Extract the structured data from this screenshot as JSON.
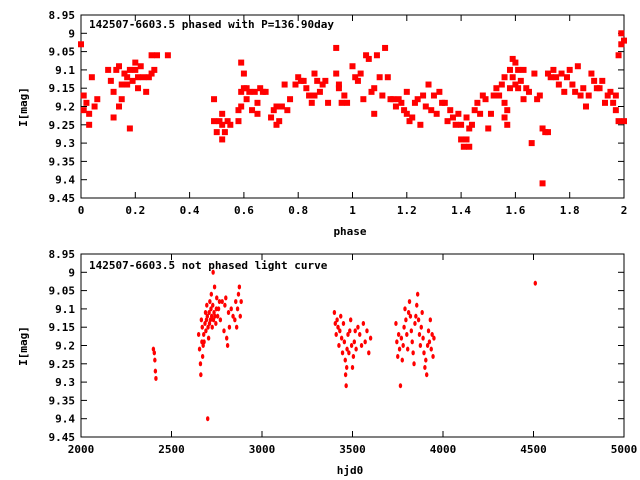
{
  "chart_data": [
    {
      "type": "scatter",
      "title": "142507-6603.5 phased with P=136.90day",
      "xlabel": "phase",
      "ylabel": "I[mag]",
      "xlim": [
        0,
        2
      ],
      "ylim": [
        9.45,
        8.95
      ],
      "y_inverted": true,
      "xticks": [
        "0",
        "0.2",
        "0.4",
        "0.6",
        "0.8",
        "1",
        "1.2",
        "1.4",
        "1.6",
        "1.8",
        "2"
      ],
      "yticks": [
        "8.95",
        "9",
        "9.05",
        "9.1",
        "9.15",
        "9.2",
        "9.25",
        "9.3",
        "9.35",
        "9.4",
        "9.45"
      ],
      "marker_color": "#ff0000",
      "marker": "filled-dot-large",
      "points": [
        [
          0.0,
          9.03
        ],
        [
          0.01,
          9.17
        ],
        [
          0.01,
          9.21
        ],
        [
          0.02,
          9.19
        ],
        [
          0.03,
          9.22
        ],
        [
          0.03,
          9.25
        ],
        [
          0.04,
          9.12
        ],
        [
          0.05,
          9.2
        ],
        [
          0.06,
          9.18
        ],
        [
          0.1,
          9.1
        ],
        [
          0.11,
          9.13
        ],
        [
          0.12,
          9.16
        ],
        [
          0.12,
          9.23
        ],
        [
          0.13,
          9.1
        ],
        [
          0.14,
          9.2
        ],
        [
          0.14,
          9.09
        ],
        [
          0.15,
          9.14
        ],
        [
          0.15,
          9.18
        ],
        [
          0.16,
          9.11
        ],
        [
          0.17,
          9.12
        ],
        [
          0.17,
          9.14
        ],
        [
          0.18,
          9.1
        ],
        [
          0.18,
          9.26
        ],
        [
          0.19,
          9.13
        ],
        [
          0.2,
          9.08
        ],
        [
          0.2,
          9.1
        ],
        [
          0.21,
          9.15
        ],
        [
          0.21,
          9.12
        ],
        [
          0.22,
          9.09
        ],
        [
          0.23,
          9.12
        ],
        [
          0.24,
          9.16
        ],
        [
          0.25,
          9.12
        ],
        [
          0.26,
          9.11
        ],
        [
          0.26,
          9.06
        ],
        [
          0.27,
          9.1
        ],
        [
          0.28,
          9.06
        ],
        [
          0.32,
          9.06
        ],
        [
          0.49,
          9.18
        ],
        [
          0.49,
          9.24
        ],
        [
          0.5,
          9.27
        ],
        [
          0.51,
          9.24
        ],
        [
          0.52,
          9.22
        ],
        [
          0.52,
          9.25
        ],
        [
          0.52,
          9.29
        ],
        [
          0.53,
          9.27
        ],
        [
          0.54,
          9.24
        ],
        [
          0.55,
          9.25
        ],
        [
          0.58,
          9.24
        ],
        [
          0.58,
          9.21
        ],
        [
          0.59,
          9.16
        ],
        [
          0.59,
          9.2
        ],
        [
          0.59,
          9.08
        ],
        [
          0.6,
          9.11
        ],
        [
          0.6,
          9.15
        ],
        [
          0.61,
          9.15
        ],
        [
          0.61,
          9.18
        ],
        [
          0.62,
          9.16
        ],
        [
          0.63,
          9.21
        ],
        [
          0.64,
          9.16
        ],
        [
          0.65,
          9.22
        ],
        [
          0.65,
          9.19
        ],
        [
          0.66,
          9.15
        ],
        [
          0.67,
          9.16
        ],
        [
          0.68,
          9.16
        ],
        [
          0.7,
          9.23
        ],
        [
          0.71,
          9.21
        ],
        [
          0.72,
          9.25
        ],
        [
          0.72,
          9.2
        ],
        [
          0.73,
          9.24
        ],
        [
          0.74,
          9.2
        ],
        [
          0.75,
          9.14
        ],
        [
          0.76,
          9.21
        ],
        [
          0.77,
          9.18
        ],
        [
          0.79,
          9.14
        ],
        [
          0.8,
          9.12
        ],
        [
          0.81,
          9.13
        ],
        [
          0.82,
          9.13
        ],
        [
          0.83,
          9.15
        ],
        [
          0.84,
          9.17
        ],
        [
          0.85,
          9.19
        ],
        [
          0.86,
          9.11
        ],
        [
          0.86,
          9.17
        ],
        [
          0.87,
          9.13
        ],
        [
          0.88,
          9.16
        ],
        [
          0.89,
          9.14
        ],
        [
          0.9,
          9.13
        ],
        [
          0.91,
          9.19
        ],
        [
          0.94,
          9.04
        ],
        [
          0.94,
          9.11
        ],
        [
          0.95,
          9.14
        ],
        [
          0.95,
          9.15
        ],
        [
          0.96,
          9.19
        ],
        [
          0.97,
          9.17
        ],
        [
          0.98,
          9.19
        ],
        [
          1.0,
          9.09
        ],
        [
          1.01,
          9.12
        ],
        [
          1.02,
          9.13
        ],
        [
          1.03,
          9.11
        ],
        [
          1.04,
          9.18
        ],
        [
          1.05,
          9.06
        ],
        [
          1.06,
          9.07
        ],
        [
          1.07,
          9.16
        ],
        [
          1.08,
          9.15
        ],
        [
          1.08,
          9.22
        ],
        [
          1.09,
          9.06
        ],
        [
          1.1,
          9.12
        ],
        [
          1.11,
          9.17
        ],
        [
          1.12,
          9.04
        ],
        [
          1.13,
          9.12
        ],
        [
          1.14,
          9.18
        ],
        [
          1.15,
          9.18
        ],
        [
          1.16,
          9.2
        ],
        [
          1.17,
          9.18
        ],
        [
          1.18,
          9.19
        ],
        [
          1.19,
          9.21
        ],
        [
          1.2,
          9.22
        ],
        [
          1.2,
          9.16
        ],
        [
          1.21,
          9.24
        ],
        [
          1.22,
          9.23
        ],
        [
          1.23,
          9.19
        ],
        [
          1.24,
          9.18
        ],
        [
          1.25,
          9.25
        ],
        [
          1.26,
          9.17
        ],
        [
          1.27,
          9.2
        ],
        [
          1.28,
          9.14
        ],
        [
          1.29,
          9.21
        ],
        [
          1.3,
          9.17
        ],
        [
          1.31,
          9.22
        ],
        [
          1.32,
          9.16
        ],
        [
          1.33,
          9.19
        ],
        [
          1.34,
          9.19
        ],
        [
          1.35,
          9.24
        ],
        [
          1.36,
          9.21
        ],
        [
          1.37,
          9.23
        ],
        [
          1.38,
          9.25
        ],
        [
          1.39,
          9.22
        ],
        [
          1.4,
          9.29
        ],
        [
          1.4,
          9.25
        ],
        [
          1.41,
          9.31
        ],
        [
          1.42,
          9.23
        ],
        [
          1.42,
          9.29
        ],
        [
          1.43,
          9.26
        ],
        [
          1.43,
          9.31
        ],
        [
          1.44,
          9.25
        ],
        [
          1.45,
          9.21
        ],
        [
          1.46,
          9.19
        ],
        [
          1.47,
          9.22
        ],
        [
          1.48,
          9.17
        ],
        [
          1.49,
          9.18
        ],
        [
          1.5,
          9.26
        ],
        [
          1.51,
          9.22
        ],
        [
          1.52,
          9.17
        ],
        [
          1.53,
          9.15
        ],
        [
          1.54,
          9.17
        ],
        [
          1.55,
          9.14
        ],
        [
          1.56,
          9.12
        ],
        [
          1.56,
          9.19
        ],
        [
          1.56,
          9.23
        ],
        [
          1.57,
          9.21
        ],
        [
          1.57,
          9.25
        ],
        [
          1.58,
          9.1
        ],
        [
          1.58,
          9.15
        ],
        [
          1.59,
          9.12
        ],
        [
          1.59,
          9.07
        ],
        [
          1.6,
          9.08
        ],
        [
          1.6,
          9.14
        ],
        [
          1.61,
          9.15
        ],
        [
          1.61,
          9.1
        ],
        [
          1.62,
          9.13
        ],
        [
          1.63,
          9.18
        ],
        [
          1.63,
          9.1
        ],
        [
          1.64,
          9.15
        ],
        [
          1.65,
          9.16
        ],
        [
          1.66,
          9.3
        ],
        [
          1.67,
          9.11
        ],
        [
          1.68,
          9.18
        ],
        [
          1.69,
          9.17
        ],
        [
          1.7,
          9.41
        ],
        [
          1.7,
          9.26
        ],
        [
          1.71,
          9.27
        ],
        [
          1.72,
          9.27
        ],
        [
          1.72,
          9.11
        ],
        [
          1.73,
          9.12
        ],
        [
          1.74,
          9.1
        ],
        [
          1.75,
          9.12
        ],
        [
          1.76,
          9.14
        ],
        [
          1.77,
          9.11
        ],
        [
          1.78,
          9.16
        ],
        [
          1.79,
          9.12
        ],
        [
          1.8,
          9.1
        ],
        [
          1.81,
          9.14
        ],
        [
          1.82,
          9.16
        ],
        [
          1.83,
          9.09
        ],
        [
          1.84,
          9.17
        ],
        [
          1.85,
          9.15
        ],
        [
          1.86,
          9.2
        ],
        [
          1.87,
          9.17
        ],
        [
          1.88,
          9.11
        ],
        [
          1.89,
          9.13
        ],
        [
          1.9,
          9.15
        ],
        [
          1.91,
          9.15
        ],
        [
          1.92,
          9.13
        ],
        [
          1.93,
          9.19
        ],
        [
          1.94,
          9.17
        ],
        [
          1.95,
          9.16
        ],
        [
          1.96,
          9.19
        ],
        [
          1.97,
          9.17
        ],
        [
          1.97,
          9.21
        ],
        [
          1.98,
          9.24
        ],
        [
          1.98,
          9.06
        ],
        [
          1.99,
          9.03
        ],
        [
          1.99,
          9.0
        ],
        [
          2.0,
          9.02
        ],
        [
          2.0,
          9.24
        ]
      ]
    },
    {
      "type": "scatter",
      "title": "142507-6603.5 not phased light curve",
      "xlabel": "hjd0",
      "ylabel": "I[mag]",
      "xlim": [
        2000,
        5000
      ],
      "ylim": [
        9.45,
        8.95
      ],
      "y_inverted": true,
      "xticks": [
        "2000",
        "2500",
        "3000",
        "3500",
        "4000",
        "4500",
        "5000"
      ],
      "yticks": [
        "8.95",
        "9",
        "9.05",
        "9.1",
        "9.15",
        "9.2",
        "9.25",
        "9.3",
        "9.35",
        "9.4",
        "9.45"
      ],
      "marker_color": "#ff0000",
      "marker": "filled-dot-small",
      "points": [
        [
          2405,
          9.22
        ],
        [
          2408,
          9.24
        ],
        [
          2411,
          9.27
        ],
        [
          2414,
          9.29
        ],
        [
          2400,
          9.21
        ],
        [
          2650,
          9.17
        ],
        [
          2655,
          9.21
        ],
        [
          2660,
          9.25
        ],
        [
          2662,
          9.28
        ],
        [
          2665,
          9.13
        ],
        [
          2668,
          9.19
        ],
        [
          2670,
          9.15
        ],
        [
          2672,
          9.23
        ],
        [
          2675,
          9.2
        ],
        [
          2678,
          9.17
        ],
        [
          2680,
          9.19
        ],
        [
          2685,
          9.14
        ],
        [
          2688,
          9.11
        ],
        [
          2690,
          9.16
        ],
        [
          2693,
          9.13
        ],
        [
          2695,
          9.09
        ],
        [
          2698,
          9.12
        ],
        [
          2700,
          9.4
        ],
        [
          2702,
          9.15
        ],
        [
          2705,
          9.18
        ],
        [
          2708,
          9.11
        ],
        [
          2710,
          9.14
        ],
        [
          2712,
          9.08
        ],
        [
          2715,
          9.13
        ],
        [
          2718,
          9.1
        ],
        [
          2720,
          9.06
        ],
        [
          2722,
          9.12
        ],
        [
          2725,
          9.15
        ],
        [
          2728,
          9.09
        ],
        [
          2730,
          9.0
        ],
        [
          2732,
          9.13
        ],
        [
          2735,
          9.11
        ],
        [
          2738,
          9.04
        ],
        [
          2740,
          9.12
        ],
        [
          2745,
          9.14
        ],
        [
          2748,
          9.1
        ],
        [
          2750,
          9.07
        ],
        [
          2755,
          9.12
        ],
        [
          2760,
          9.1
        ],
        [
          2765,
          9.08
        ],
        [
          2770,
          9.13
        ],
        [
          2780,
          9.08
        ],
        [
          2790,
          9.16
        ],
        [
          2795,
          9.09
        ],
        [
          2800,
          9.07
        ],
        [
          2805,
          9.18
        ],
        [
          2810,
          9.2
        ],
        [
          2815,
          9.11
        ],
        [
          2820,
          9.15
        ],
        [
          2830,
          9.1
        ],
        [
          2840,
          9.12
        ],
        [
          2850,
          9.13
        ],
        [
          2855,
          9.08
        ],
        [
          2860,
          9.15
        ],
        [
          2865,
          9.1
        ],
        [
          2870,
          9.06
        ],
        [
          2875,
          9.04
        ],
        [
          2880,
          9.12
        ],
        [
          2885,
          9.08
        ],
        [
          3400,
          9.11
        ],
        [
          3405,
          9.14
        ],
        [
          3410,
          9.17
        ],
        [
          3415,
          9.13
        ],
        [
          3420,
          9.15
        ],
        [
          3425,
          9.2
        ],
        [
          3430,
          9.16
        ],
        [
          3435,
          9.12
        ],
        [
          3440,
          9.18
        ],
        [
          3445,
          9.22
        ],
        [
          3450,
          9.14
        ],
        [
          3455,
          9.19
        ],
        [
          3460,
          9.24
        ],
        [
          3462,
          9.28
        ],
        [
          3465,
          9.31
        ],
        [
          3468,
          9.26
        ],
        [
          3470,
          9.21
        ],
        [
          3475,
          9.17
        ],
        [
          3480,
          9.22
        ],
        [
          3485,
          9.16
        ],
        [
          3490,
          9.13
        ],
        [
          3495,
          9.2
        ],
        [
          3500,
          9.26
        ],
        [
          3505,
          9.23
        ],
        [
          3510,
          9.19
        ],
        [
          3515,
          9.16
        ],
        [
          3520,
          9.21
        ],
        [
          3530,
          9.15
        ],
        [
          3540,
          9.17
        ],
        [
          3550,
          9.2
        ],
        [
          3560,
          9.14
        ],
        [
          3570,
          9.19
        ],
        [
          3580,
          9.16
        ],
        [
          3590,
          9.22
        ],
        [
          3600,
          9.18
        ],
        [
          3740,
          9.14
        ],
        [
          3745,
          9.19
        ],
        [
          3750,
          9.23
        ],
        [
          3755,
          9.17
        ],
        [
          3760,
          9.21
        ],
        [
          3765,
          9.31
        ],
        [
          3770,
          9.18
        ],
        [
          3775,
          9.24
        ],
        [
          3780,
          9.2
        ],
        [
          3785,
          9.15
        ],
        [
          3790,
          9.1
        ],
        [
          3795,
          9.13
        ],
        [
          3800,
          9.17
        ],
        [
          3805,
          9.21
        ],
        [
          3810,
          9.11
        ],
        [
          3815,
          9.08
        ],
        [
          3820,
          9.12
        ],
        [
          3825,
          9.16
        ],
        [
          3830,
          9.19
        ],
        [
          3835,
          9.22
        ],
        [
          3840,
          9.25
        ],
        [
          3845,
          9.14
        ],
        [
          3850,
          9.12
        ],
        [
          3855,
          9.09
        ],
        [
          3860,
          9.06
        ],
        [
          3865,
          9.13
        ],
        [
          3870,
          9.17
        ],
        [
          3875,
          9.2
        ],
        [
          3880,
          9.15
        ],
        [
          3885,
          9.11
        ],
        [
          3890,
          9.18
        ],
        [
          3895,
          9.22
        ],
        [
          3900,
          9.26
        ],
        [
          3905,
          9.24
        ],
        [
          3910,
          9.28
        ],
        [
          3915,
          9.2
        ],
        [
          3920,
          9.16
        ],
        [
          3925,
          9.19
        ],
        [
          3930,
          9.13
        ],
        [
          3935,
          9.21
        ],
        [
          3940,
          9.17
        ],
        [
          3945,
          9.23
        ],
        [
          3950,
          9.18
        ],
        [
          4510,
          9.03
        ]
      ]
    }
  ]
}
